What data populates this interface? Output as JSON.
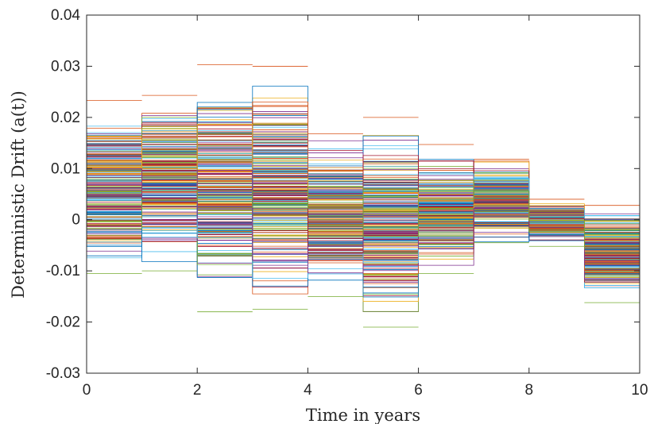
{
  "chart_data": {
    "type": "line",
    "title": "",
    "xlabel": "Time in years",
    "ylabel": "Deterministic Drift  (a(t))",
    "xlim": [
      0,
      10
    ],
    "ylim": [
      -0.03,
      0.04
    ],
    "x_ticks": [
      0,
      2,
      4,
      6,
      8,
      10
    ],
    "x_tick_labels": [
      "0",
      "2",
      "4",
      "6",
      "8",
      "10"
    ],
    "y_ticks": [
      -0.03,
      -0.02,
      -0.01,
      0,
      0.01,
      0.02,
      0.03,
      0.04
    ],
    "y_tick_labels": [
      "-0.03",
      "-0.02",
      "-0.01",
      "0",
      "0.01",
      "0.02",
      "0.03",
      "0.04"
    ],
    "grid": false,
    "legend": "none",
    "step_style": "piecewise-constant over 1-year intervals",
    "series_count_approx": 250,
    "interval_ranges": [
      {
        "x": [
          0,
          1
        ],
        "min": -0.0105,
        "max": 0.0233
      },
      {
        "x": [
          1,
          2
        ],
        "min": -0.01,
        "max": 0.0243
      },
      {
        "x": [
          2,
          3
        ],
        "min": -0.018,
        "max": 0.0303
      },
      {
        "x": [
          3,
          4
        ],
        "min": -0.0175,
        "max": 0.03
      },
      {
        "x": [
          4,
          5
        ],
        "min": -0.015,
        "max": 0.0168
      },
      {
        "x": [
          5,
          6
        ],
        "min": -0.021,
        "max": 0.02
      },
      {
        "x": [
          6,
          7
        ],
        "min": -0.0105,
        "max": 0.0147
      },
      {
        "x": [
          7,
          8
        ],
        "min": -0.0045,
        "max": 0.0118
      },
      {
        "x": [
          8,
          9
        ],
        "min": -0.0052,
        "max": 0.004
      },
      {
        "x": [
          9,
          10
        ],
        "min": -0.0162,
        "max": 0.0028
      }
    ],
    "colors": [
      "#0072BD",
      "#D95319",
      "#EDB120",
      "#7E2F8E",
      "#77AC30",
      "#4DBEEE",
      "#A2142F"
    ]
  }
}
